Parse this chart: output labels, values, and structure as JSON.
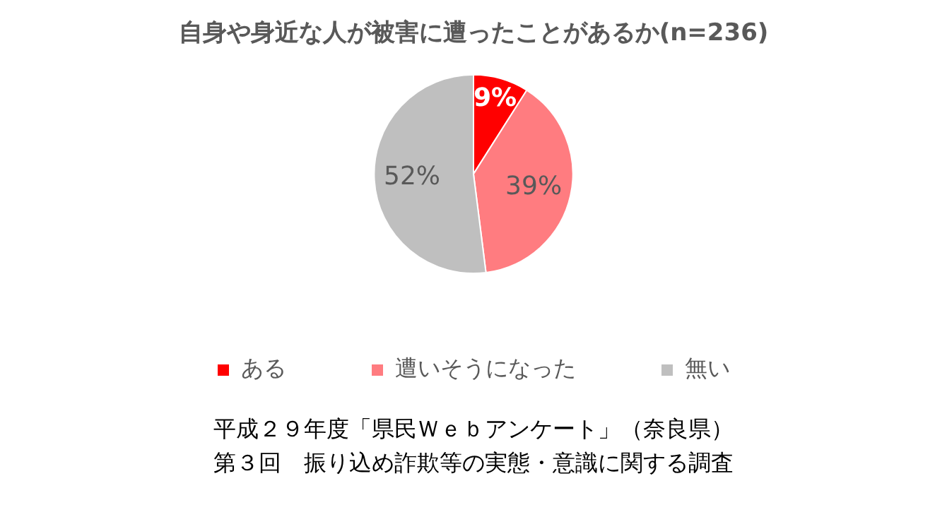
{
  "chart_data": {
    "type": "pie",
    "title": "自身や身近な人が被害に遭ったことがあるか(n=236)",
    "categories": [
      "ある",
      "遭いそうになった",
      "無い"
    ],
    "values": [
      9,
      39,
      52
    ],
    "colors": [
      "#ff0000",
      "#ff7c80",
      "#bfbfbf"
    ],
    "value_labels": [
      "9%",
      "39%",
      "52%"
    ],
    "legend": "bottom",
    "annotations": [
      "平成２９年度「県民Ｗｅｂアンケート」（奈良県）",
      "第３回　振り込め詐欺等の実態・意識に関する調査"
    ]
  }
}
